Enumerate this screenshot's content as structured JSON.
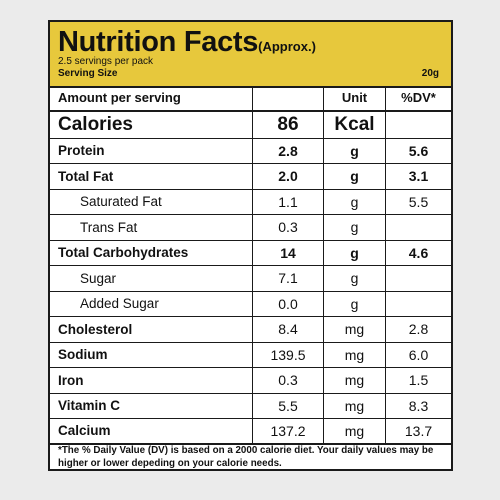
{
  "header": {
    "title": "Nutrition Facts",
    "approx": "(Approx.)",
    "servings": "2.5 servings per pack",
    "serving_size_label": "Serving Size",
    "serving_size_value": "20g"
  },
  "table": {
    "head": {
      "name": "Amount per serving",
      "unit": "Unit",
      "dv": "%DV*"
    },
    "rows": [
      {
        "name": "Calories",
        "amount": "86",
        "unit": "Kcal",
        "dv": ""
      },
      {
        "name": "Protein",
        "amount": "2.8",
        "unit": "g",
        "dv": "5.6"
      },
      {
        "name": "Total Fat",
        "amount": "2.0",
        "unit": "g",
        "dv": "3.1"
      },
      {
        "name": "Saturated Fat",
        "amount": "1.1",
        "unit": "g",
        "dv": "5.5"
      },
      {
        "name": "Trans Fat",
        "amount": "0.3",
        "unit": "g",
        "dv": ""
      },
      {
        "name": "Total Carbohydrates",
        "amount": "14",
        "unit": "g",
        "dv": "4.6"
      },
      {
        "name": "Sugar",
        "amount": "7.1",
        "unit": "g",
        "dv": ""
      },
      {
        "name": "Added Sugar",
        "amount": "0.0",
        "unit": "g",
        "dv": ""
      },
      {
        "name": "Cholesterol",
        "amount": "8.4",
        "unit": "mg",
        "dv": "2.8"
      },
      {
        "name": "Sodium",
        "amount": "139.5",
        "unit": "mg",
        "dv": "6.0"
      },
      {
        "name": "Iron",
        "amount": "0.3",
        "unit": "mg",
        "dv": "1.5"
      },
      {
        "name": "Vitamin C",
        "amount": "5.5",
        "unit": "mg",
        "dv": "8.3"
      },
      {
        "name": "Calcium",
        "amount": "137.2",
        "unit": "mg",
        "dv": "13.7"
      }
    ]
  },
  "footnote": "*The % Daily Value (DV) is based on a 2000 calorie diet. Your daily values may be higher or lower depeding on your calorie needs.",
  "colors": {
    "header_bg": "#e7c83c",
    "border": "#1a1a1a"
  }
}
